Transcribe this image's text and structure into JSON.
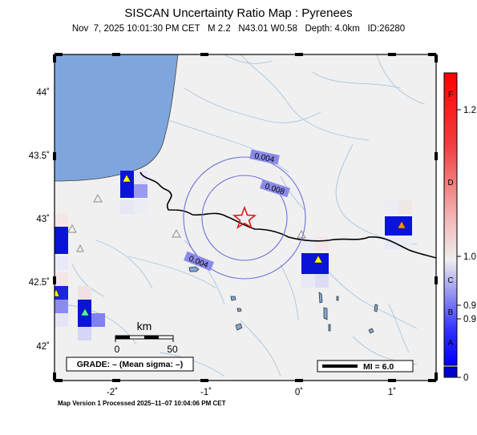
{
  "title": "SISCAN Uncertainty Ratio Map : Pyrenees",
  "subtitle": {
    "datetime": "Nov  7, 2025 10:01:30 PM CET",
    "magnitude": "M 2.2",
    "location": "N43.01 W0.58",
    "depth": "Depth: 4.0km",
    "event_id": "ID:26280"
  },
  "axes": {
    "lon_ticks": [
      "-2˚",
      "-1˚",
      "0˚",
      "1˚"
    ],
    "lat_ticks": [
      "44˚",
      "43.5˚",
      "43˚",
      "42.5˚",
      "42˚"
    ]
  },
  "contours": [
    "0.004",
    "0.008",
    "0.004"
  ],
  "scale_bar": {
    "unit": "km",
    "labels": [
      "0",
      "50"
    ]
  },
  "grade_box": "GRADE: – (Mean sigma: –)",
  "mi_legend": "MI = 6.0",
  "colorbar": {
    "letters": [
      "F",
      "D",
      "C",
      "B",
      "A"
    ],
    "values": [
      "1.2",
      "1.0",
      "0.9",
      "0.9",
      "0"
    ]
  },
  "footer": "Map Version 1 Processed 2025–11–07 10:04:06 PM CET",
  "colors": {
    "sea": "#7ea6dc",
    "land": "#f0f0f0",
    "river": "#a9c6e2",
    "contour": "#6f6fd9",
    "cell_dark": "#0a14d8",
    "epicenter": "#e01010"
  }
}
